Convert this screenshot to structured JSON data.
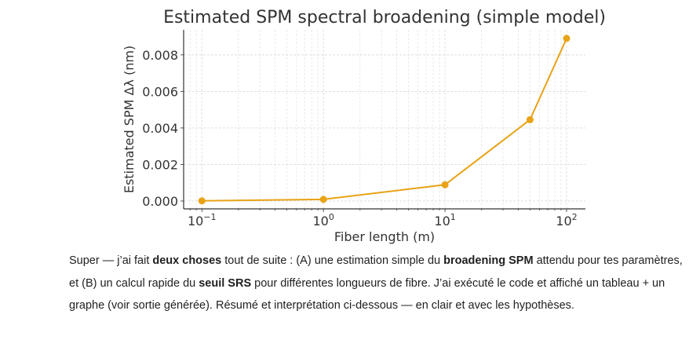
{
  "chart_data": {
    "type": "line",
    "title": "Estimated SPM spectral broadening (simple model)",
    "xlabel": "Fiber length (m)",
    "ylabel": "Estimated SPM Δλ (nm)",
    "xscale": "log",
    "x": [
      0.1,
      1,
      10,
      50,
      100
    ],
    "series": [
      {
        "name": "SPM Δλ",
        "values": [
          8.9e-06,
          8.9e-05,
          0.00089,
          0.00445,
          0.0089
        ],
        "color": "#e8a317"
      }
    ],
    "xlim_log10": [
      -1.15,
      2.155
    ],
    "ylim": [
      -0.00043,
      0.00937
    ],
    "xticks": [
      {
        "value": 0.1,
        "base": "10",
        "exp": "−1"
      },
      {
        "value": 1,
        "base": "10",
        "exp": "0"
      },
      {
        "value": 10,
        "base": "10",
        "exp": "1"
      },
      {
        "value": 100,
        "base": "10",
        "exp": "2"
      }
    ],
    "yticks": [
      {
        "value": 0,
        "label": "0.000"
      },
      {
        "value": 0.002,
        "label": "0.002"
      },
      {
        "value": 0.004,
        "label": "0.004"
      },
      {
        "value": 0.006,
        "label": "0.006"
      },
      {
        "value": 0.008,
        "label": "0.008"
      }
    ],
    "grid": true,
    "legend": "none"
  },
  "message": {
    "s1": "Super — j’ai fait ",
    "b1": "deux choses",
    "s2": " tout de suite : (A) une estimation simple du ",
    "b2": "broadening SPM",
    "s3": " attendu pour tes paramètres, et (B) un calcul rapide du ",
    "b3": "seuil SRS",
    "s4": " pour différentes longueurs de fibre. J’ai exécuté le code et affiché un tableau + un graphe (voir sortie générée). Résumé et interprétation ci-dessous — en clair et avec les hypothèses."
  }
}
